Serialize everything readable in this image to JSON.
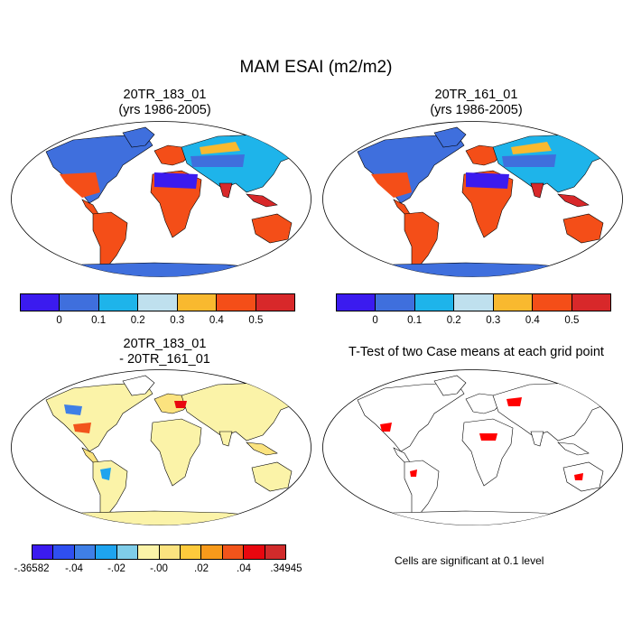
{
  "figure": {
    "title": "MAM ESAI (m2/m2)",
    "note": "Cells are significant at 0.1 level"
  },
  "panels": [
    {
      "line1": "20TR_183_01",
      "line2": "(yrs 1986-2005)",
      "kind": "abs"
    },
    {
      "line1": "20TR_161_01",
      "line2": "(yrs 1986-2005)",
      "kind": "abs"
    },
    {
      "line1": "20TR_183_01",
      "line2": "- 20TR_161_01",
      "kind": "diff"
    },
    {
      "line1": "T-Test of two Case means at each grid point",
      "line2": "",
      "kind": "ttest"
    }
  ],
  "colorbars": {
    "abs": {
      "colors": [
        "#3b1bef",
        "#3f6fdd",
        "#1eb4ea",
        "#bfe0ee",
        "#f9b92f",
        "#f44e18",
        "#d8282a"
      ],
      "labels": [
        "0",
        "0.1",
        "0.2",
        "0.3",
        "0.4",
        "0.5"
      ]
    },
    "diff": {
      "colors": [
        "#3b1bef",
        "#2f4ff0",
        "#3f7fe6",
        "#1ea4ef",
        "#7fcde9",
        "#fbf3a8",
        "#fbe37f",
        "#fdca3c",
        "#f79a1b",
        "#f2541b",
        "#e8070f",
        "#d12b2b"
      ],
      "labels": [
        "-.36582",
        "-.04",
        "-.02",
        "-.00",
        ".02",
        ".04",
        ".34945"
      ]
    }
  },
  "legend_colors": {
    "ttest": "#ff0000",
    "land_outline": "#000000",
    "ocean": "#ffffff"
  }
}
